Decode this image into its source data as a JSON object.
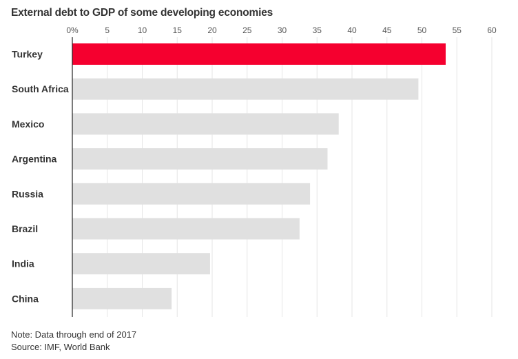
{
  "chart_data": {
    "type": "bar",
    "orientation": "horizontal",
    "title": "External debt to GDP of some developing economies",
    "xlabel": "",
    "ylabel": "",
    "xlim": [
      0,
      60
    ],
    "xticks": [
      0,
      5,
      10,
      15,
      20,
      25,
      30,
      35,
      40,
      45,
      50,
      55,
      60
    ],
    "xtick_labels": [
      "0%",
      "5",
      "10",
      "15",
      "20",
      "25",
      "30",
      "35",
      "40",
      "45",
      "50",
      "55",
      "60"
    ],
    "grid": true,
    "categories": [
      "Turkey",
      "South Africa",
      "Mexico",
      "Argentina",
      "Russia",
      "Brazil",
      "India",
      "China"
    ],
    "values": [
      53.4,
      49.5,
      38.1,
      36.5,
      34.0,
      32.5,
      19.7,
      14.2
    ],
    "highlight": "Turkey",
    "colors": {
      "highlight": "#f5002f",
      "default": "#e0e0e0",
      "grid": "#e6e6e6",
      "axis": "#222222"
    },
    "notes": [
      "Note: Data through end of 2017",
      "Source: IMF, World Bank"
    ]
  }
}
